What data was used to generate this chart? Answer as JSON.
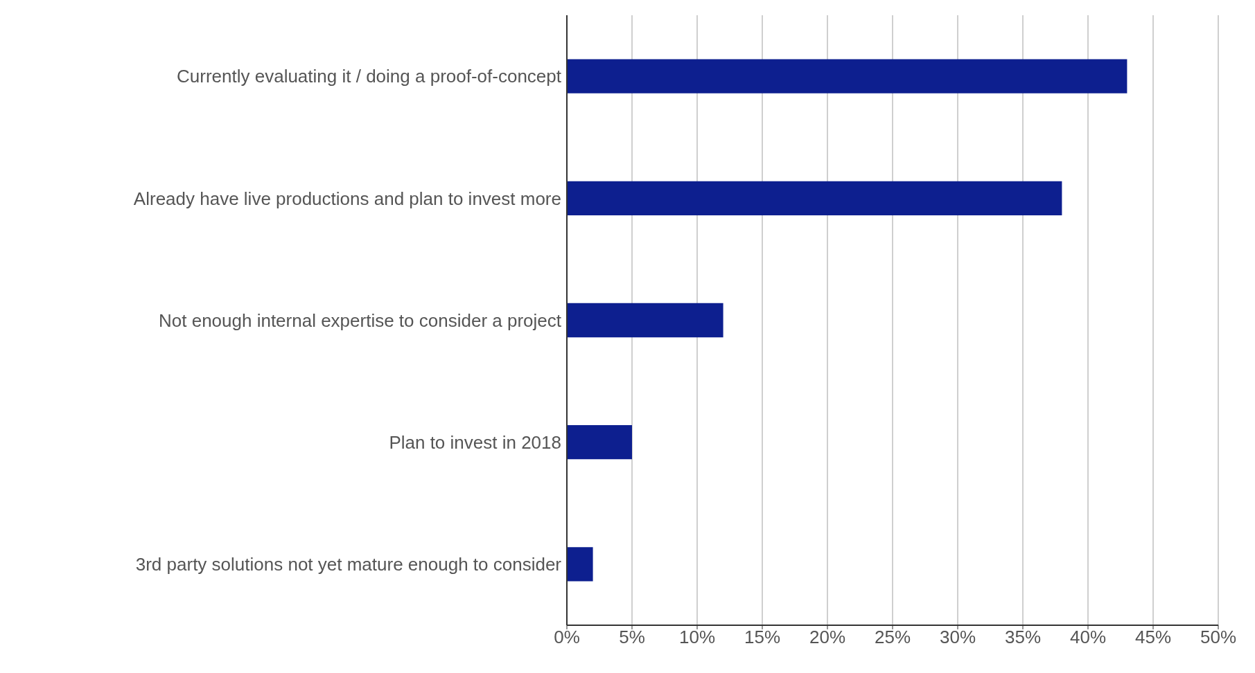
{
  "chart_data": {
    "type": "bar",
    "orientation": "horizontal",
    "categories": [
      "Currently evaluating it / doing a proof-of-concept",
      "Already have live productions and plan to invest more",
      "Not enough internal expertise to consider a project",
      "Plan to invest in 2018",
      "3rd party solutions not yet mature enough to consider"
    ],
    "values": [
      43,
      38,
      12,
      5,
      2
    ],
    "color": "#0d1f8f",
    "xlim": [
      0,
      50
    ],
    "xticks": [
      {
        "value": 0,
        "label": "0%"
      },
      {
        "value": 5,
        "label": "5%"
      },
      {
        "value": 10,
        "label": "10%"
      },
      {
        "value": 15,
        "label": "15%"
      },
      {
        "value": 20,
        "label": "20%"
      },
      {
        "value": 25,
        "label": "25%"
      },
      {
        "value": 30,
        "label": "30%"
      },
      {
        "value": 35,
        "label": "35%"
      },
      {
        "value": 40,
        "label": "40%"
      },
      {
        "value": 45,
        "label": "45%"
      },
      {
        "value": 50,
        "label": "50%"
      }
    ],
    "grid": "x",
    "legend": false
  }
}
